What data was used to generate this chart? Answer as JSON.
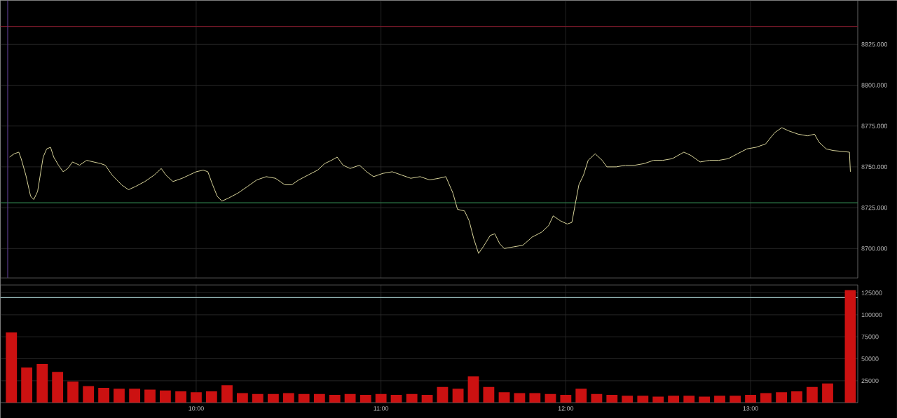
{
  "chart_data": [
    {
      "type": "line",
      "xlim": [
        8.94,
        13.58
      ],
      "ylim": [
        8682,
        8852
      ],
      "xticks": [
        {
          "value": 10,
          "label": null
        },
        {
          "value": 11,
          "label": null
        },
        {
          "value": 12,
          "label": null
        },
        {
          "value": 13,
          "label": null
        }
      ],
      "yticks": [
        {
          "value": 8700,
          "label": "8700.000"
        },
        {
          "value": 8725,
          "label": "8725.000"
        },
        {
          "value": 8750,
          "label": "8750.000"
        },
        {
          "value": 8775,
          "label": "8775.000"
        },
        {
          "value": 8800,
          "label": "8800.000"
        },
        {
          "value": 8825,
          "label": "8825.000"
        }
      ],
      "tick_labels": "y",
      "grid": true,
      "ref_lines": [
        {
          "axis": "y",
          "value": 8836,
          "color": "#7a1a2a"
        },
        {
          "axis": "y",
          "value": 8728,
          "color": "#2e7d4a"
        },
        {
          "axis": "x",
          "value": 8.98,
          "color": "#5a3a8a"
        }
      ],
      "series": [
        {
          "color": "#d8d49a",
          "x": [
            8.99,
            9.015,
            9.04,
            9.053,
            9.078,
            9.104,
            9.121,
            9.142,
            9.172,
            9.191,
            9.212,
            9.229,
            9.255,
            9.28,
            9.305,
            9.331,
            9.369,
            9.407,
            9.445,
            9.483,
            9.508,
            9.545,
            9.596,
            9.634,
            9.672,
            9.722,
            9.773,
            9.811,
            9.836,
            9.874,
            9.924,
            9.962,
            10.0,
            10.038,
            10.063,
            10.089,
            10.114,
            10.139,
            10.177,
            10.227,
            10.278,
            10.328,
            10.379,
            10.429,
            10.48,
            10.517,
            10.555,
            10.606,
            10.657,
            10.695,
            10.732,
            10.763,
            10.795,
            10.833,
            10.884,
            10.922,
            10.96,
            11.01,
            11.061,
            11.111,
            11.161,
            11.212,
            11.263,
            11.313,
            11.351,
            11.389,
            11.414,
            11.452,
            11.477,
            11.502,
            11.528,
            11.553,
            11.591,
            11.616,
            11.642,
            11.667,
            11.717,
            11.768,
            11.818,
            11.869,
            11.907,
            11.932,
            11.97,
            12.008,
            12.033,
            12.051,
            12.071,
            12.096,
            12.121,
            12.159,
            12.197,
            12.222,
            12.273,
            12.323,
            12.374,
            12.424,
            12.475,
            12.525,
            12.576,
            12.639,
            12.677,
            12.727,
            12.778,
            12.828,
            12.879,
            12.929,
            12.98,
            13.03,
            13.081,
            13.131,
            13.169,
            13.207,
            13.258,
            13.308,
            13.346,
            13.371,
            13.409,
            13.447,
            13.535,
            13.54
          ],
          "values": [
            8756,
            8758,
            8759,
            8755,
            8745,
            8732,
            8730,
            8735,
            8756,
            8761,
            8762,
            8756,
            8751,
            8747,
            8749,
            8753,
            8751,
            8754,
            8753,
            8752,
            8751,
            8745,
            8739,
            8736,
            8738,
            8741,
            8745,
            8749,
            8745,
            8741,
            8743,
            8745,
            8747,
            8748,
            8747,
            8739,
            8732,
            8729,
            8731,
            8734,
            8738,
            8742,
            8744,
            8743,
            8739,
            8739,
            8742,
            8745,
            8748,
            8752,
            8754,
            8756,
            8751,
            8749,
            8751,
            8747,
            8744,
            8746,
            8747,
            8745,
            8743,
            8744,
            8742,
            8743,
            8744,
            8734,
            8724,
            8723,
            8717,
            8706,
            8697,
            8701,
            8708,
            8709,
            8703,
            8700,
            8701,
            8702,
            8707,
            8710,
            8714,
            8720,
            8717,
            8715,
            8716,
            8727,
            8739,
            8745,
            8754,
            8758,
            8754,
            8750,
            8750,
            8751,
            8751,
            8752,
            8754,
            8754,
            8755,
            8759,
            8757,
            8753,
            8754,
            8754,
            8755,
            8758,
            8761,
            8762,
            8764,
            8771,
            8774,
            8772,
            8770,
            8769,
            8770,
            8765,
            8761,
            8760,
            8759,
            8747
          ]
        }
      ]
    },
    {
      "type": "bar",
      "xlim": [
        8.94,
        13.58
      ],
      "ylim": [
        0,
        134000
      ],
      "xticks": [
        {
          "value": 10,
          "label": "10:00"
        },
        {
          "value": 11,
          "label": "11:00"
        },
        {
          "value": 12,
          "label": "12:00"
        },
        {
          "value": 13,
          "label": "13:00"
        }
      ],
      "yticks": [
        25000,
        50000,
        75000,
        100000,
        125000
      ],
      "grid": true,
      "ref_lines": [
        {
          "axis": "y",
          "value": 119519,
          "color": "#9fc4c4"
        }
      ],
      "series": [
        {
          "color": "#cc1111",
          "x": [
            9.0,
            9.083,
            9.167,
            9.25,
            9.333,
            9.417,
            9.5,
            9.583,
            9.667,
            9.75,
            9.833,
            9.917,
            10.0,
            10.083,
            10.167,
            10.25,
            10.333,
            10.417,
            10.5,
            10.583,
            10.667,
            10.75,
            10.833,
            10.917,
            11.0,
            11.083,
            11.167,
            11.25,
            11.333,
            11.417,
            11.5,
            11.583,
            11.667,
            11.75,
            11.833,
            11.917,
            12.0,
            12.083,
            12.167,
            12.25,
            12.333,
            12.417,
            12.5,
            12.583,
            12.667,
            12.75,
            12.833,
            12.917,
            13.0,
            13.083,
            13.167,
            13.25,
            13.333,
            13.417,
            13.54
          ],
          "values": [
            80000,
            40000,
            44000,
            35000,
            24000,
            19000,
            17000,
            16000,
            16000,
            15000,
            14000,
            13000,
            12000,
            13000,
            20000,
            11000,
            10000,
            10000,
            11000,
            10000,
            10000,
            9000,
            10000,
            9000,
            10000,
            9000,
            10000,
            9000,
            18000,
            16000,
            30000,
            18000,
            12000,
            11000,
            11000,
            10000,
            9000,
            16000,
            10000,
            9000,
            8000,
            8000,
            7000,
            8000,
            8000,
            7000,
            8000,
            8000,
            9000,
            11000,
            12000,
            13000,
            18000,
            22000,
            128000
          ]
        }
      ]
    }
  ]
}
